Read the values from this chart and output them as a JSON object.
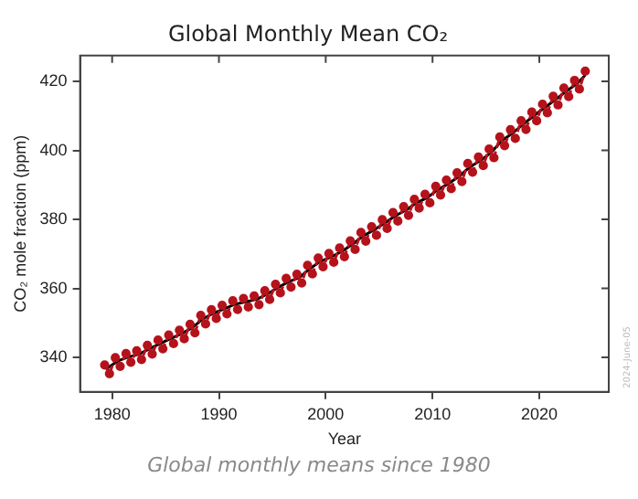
{
  "chart_data": {
    "type": "line",
    "title": "Global Monthly Mean CO₂",
    "xlabel": "Year",
    "ylabel": "CO₂ mole fraction (ppm)",
    "annotations": [
      "Global monthly means since 1980",
      "2024-June-05"
    ],
    "xlim": [
      1977,
      2026.5
    ],
    "xticks": [
      1980,
      1990,
      2000,
      2010,
      2020
    ],
    "ylim": [
      330,
      427.5
    ],
    "yticks": [
      340,
      360,
      380,
      400,
      420
    ],
    "grid": false,
    "legend": false,
    "series": [
      {
        "color": "#b5121b",
        "marker": "circle",
        "line_style": "dashed",
        "x": [
          1979.3,
          1979.75,
          1980.3,
          1980.75,
          1981.3,
          1981.75,
          1982.3,
          1982.75,
          1983.3,
          1983.75,
          1984.3,
          1984.75,
          1985.3,
          1985.75,
          1986.3,
          1986.75,
          1987.3,
          1987.75,
          1988.3,
          1988.75,
          1989.3,
          1989.75,
          1990.3,
          1990.75,
          1991.3,
          1991.75,
          1992.3,
          1992.75,
          1993.3,
          1993.75,
          1994.3,
          1994.75,
          1995.3,
          1995.75,
          1996.3,
          1996.75,
          1997.3,
          1997.75,
          1998.3,
          1998.75,
          1999.3,
          1999.75,
          2000.3,
          2000.75,
          2001.3,
          2001.75,
          2002.3,
          2002.75,
          2003.3,
          2003.75,
          2004.3,
          2004.75,
          2005.3,
          2005.75,
          2006.3,
          2006.75,
          2007.3,
          2007.75,
          2008.3,
          2008.75,
          2009.3,
          2009.75,
          2010.3,
          2010.75,
          2011.3,
          2011.75,
          2012.3,
          2012.75,
          2013.3,
          2013.75,
          2014.3,
          2014.75,
          2015.3,
          2015.75,
          2016.3,
          2016.75,
          2017.3,
          2017.75,
          2018.3,
          2018.75,
          2019.3,
          2019.75,
          2020.3,
          2020.75,
          2021.3,
          2021.75,
          2022.3,
          2022.75,
          2023.3,
          2023.75,
          2024.3
        ],
        "values": [
          337.8,
          335.3,
          339.9,
          337.4,
          341.1,
          338.6,
          341.9,
          339.4,
          343.5,
          341.0,
          345.0,
          342.5,
          346.5,
          344.0,
          347.9,
          345.4,
          349.6,
          347.1,
          352.2,
          349.7,
          353.8,
          351.3,
          355.1,
          352.6,
          356.4,
          353.9,
          357.1,
          354.6,
          357.8,
          355.3,
          359.3,
          356.8,
          361.2,
          358.7,
          362.9,
          360.4,
          364.1,
          361.6,
          366.7,
          364.2,
          368.8,
          366.3,
          370.1,
          367.6,
          371.7,
          369.2,
          373.8,
          371.3,
          376.2,
          373.7,
          377.9,
          375.4,
          379.9,
          377.4,
          382.0,
          379.5,
          383.7,
          381.2,
          385.8,
          383.3,
          387.3,
          384.8,
          389.6,
          387.1,
          391.4,
          388.9,
          393.5,
          391.0,
          396.2,
          393.7,
          398.1,
          395.6,
          400.4,
          397.9,
          403.9,
          401.4,
          406.0,
          403.5,
          408.6,
          406.1,
          411.1,
          408.6,
          413.4,
          410.9,
          415.7,
          413.2,
          418.1,
          415.6,
          420.3,
          417.8,
          423.0
        ]
      },
      {
        "color": "#000000",
        "marker": "none",
        "line_style": "solid",
        "x": [
          1979.5,
          1980.5,
          1981.5,
          1982.5,
          1983.5,
          1984.5,
          1985.5,
          1986.5,
          1987.5,
          1988.5,
          1989.5,
          1990.5,
          1991.5,
          1992.5,
          1993.5,
          1994.5,
          1995.5,
          1996.5,
          1997.5,
          1998.5,
          1999.5,
          2000.5,
          2001.5,
          2002.5,
          2003.5,
          2004.5,
          2005.5,
          2006.5,
          2007.5,
          2008.5,
          2009.5,
          2010.5,
          2011.5,
          2012.5,
          2013.5,
          2014.5,
          2015.5,
          2016.5,
          2017.5,
          2018.5,
          2019.5,
          2020.5,
          2021.5,
          2022.5,
          2023.5,
          2024.3
        ],
        "values": [
          336.8,
          338.9,
          340.1,
          340.9,
          342.5,
          344.0,
          345.5,
          346.9,
          348.6,
          351.2,
          352.8,
          354.1,
          355.4,
          356.1,
          356.8,
          358.3,
          360.2,
          361.9,
          363.1,
          365.7,
          367.8,
          369.1,
          370.7,
          372.8,
          375.2,
          376.9,
          378.9,
          381.0,
          382.7,
          384.8,
          386.3,
          388.6,
          390.4,
          392.5,
          395.2,
          397.1,
          399.4,
          402.9,
          405.0,
          407.6,
          410.1,
          412.4,
          414.7,
          417.1,
          419.3,
          421.8
        ]
      }
    ]
  }
}
